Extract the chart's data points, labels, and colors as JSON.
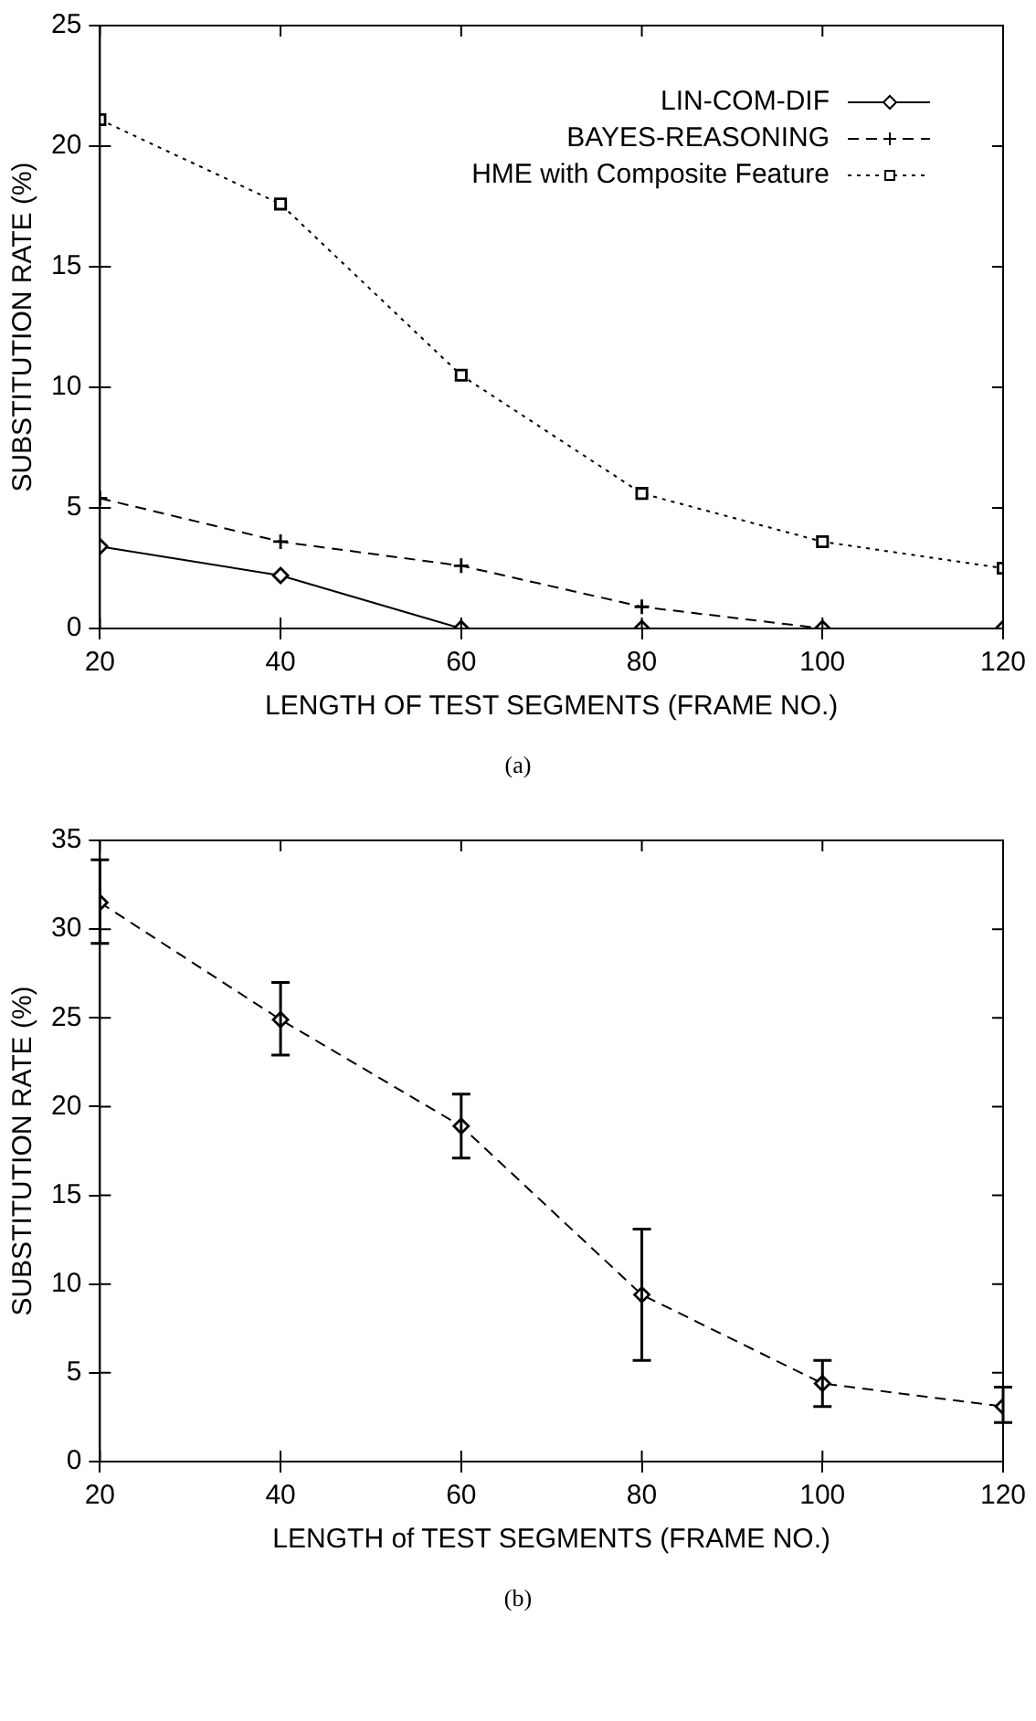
{
  "chart_data": [
    {
      "type": "line",
      "xlabel": "LENGTH OF TEST SEGMENTS (FRAME NO.)",
      "ylabel": "SUBSTITUTION RATE (%)",
      "x": [
        20,
        40,
        60,
        80,
        100,
        120
      ],
      "series": [
        {
          "name": "LIN-COM-DIF",
          "color": "#000000",
          "marker": "diamond",
          "line_style": "solid",
          "values": [
            3.4,
            2.2,
            0,
            0,
            0,
            0
          ]
        },
        {
          "name": "BAYES-REASONING",
          "color": "#000000",
          "marker": "cross",
          "line_style": "dashed",
          "values": [
            5.4,
            3.6,
            2.6,
            0.9,
            0,
            0
          ]
        },
        {
          "name": "HME with Composite Feature",
          "color": "#000000",
          "marker": "square",
          "line_style": "dotted",
          "values": [
            21.1,
            17.6,
            10.5,
            5.6,
            3.6,
            2.5
          ]
        }
      ],
      "xlim": [
        20,
        120
      ],
      "xticks": [
        20,
        40,
        60,
        80,
        100,
        120
      ],
      "ylim": [
        0,
        25
      ],
      "yticks": [
        0,
        5,
        10,
        15,
        20,
        25
      ],
      "grid": false,
      "legend": "top right",
      "annotations": [
        "(a)"
      ]
    },
    {
      "type": "line",
      "xlabel": "LENGTH of TEST SEGMENTS (FRAME NO.)",
      "ylabel": "SUBSTITUTION RATE (%)",
      "x": [
        20,
        40,
        60,
        80,
        100,
        120
      ],
      "series": [
        {
          "color": "#000000",
          "marker": "diamond",
          "line_style": "dashed",
          "values": [
            31.5,
            24.9,
            18.9,
            9.4,
            4.4,
            3.1
          ],
          "errors": [
            [
              29.2,
              33.9
            ],
            [
              22.9,
              27.0
            ],
            [
              17.1,
              20.7
            ],
            [
              5.7,
              13.1
            ],
            [
              3.1,
              5.7
            ],
            [
              2.2,
              4.2
            ]
          ]
        }
      ],
      "xlim": [
        20,
        120
      ],
      "xticks": [
        20,
        40,
        60,
        80,
        100,
        120
      ],
      "ylim": [
        0,
        35
      ],
      "yticks": [
        0,
        5,
        10,
        15,
        20,
        25,
        30,
        35
      ],
      "grid": false,
      "legend": false,
      "annotations": [
        "(b)"
      ]
    }
  ]
}
